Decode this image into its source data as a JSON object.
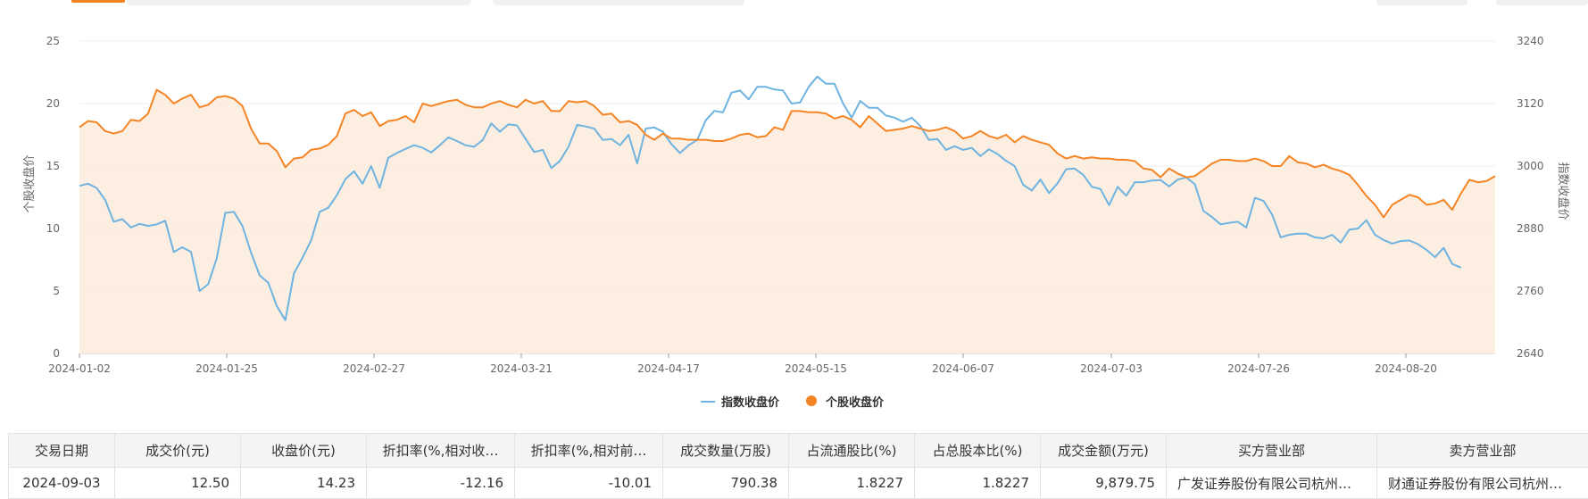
{
  "chart_data": {
    "type": "line",
    "left_axis": {
      "title": "个股收盘价",
      "ticks": [
        "0",
        "5",
        "10",
        "15",
        "20",
        "25"
      ],
      "ylim": [
        0,
        25
      ]
    },
    "right_axis": {
      "title": "指数收盘价",
      "ticks": [
        "2640",
        "2760",
        "2880",
        "3000",
        "3120",
        "3240"
      ],
      "ylim": [
        2640,
        3240
      ]
    },
    "x_tick_labels": [
      "2024-01-02",
      "2024-01-25",
      "2024-02-27",
      "2024-03-21",
      "2024-04-17",
      "2024-05-15",
      "2024-06-07",
      "2024-07-03",
      "2024-07-26",
      "2024-08-20"
    ],
    "legend_position": "bottom-center",
    "grid": true,
    "series": [
      {
        "name": "指数收盘价",
        "axis": "right",
        "color": "#6fb3e0",
        "values": [
          2962,
          2966,
          2958,
          2935,
          2893,
          2898,
          2882,
          2889,
          2885,
          2888,
          2895,
          2835,
          2844,
          2835,
          2760,
          2773,
          2823,
          2910,
          2912,
          2885,
          2834,
          2790,
          2776,
          2731,
          2704,
          2794,
          2824,
          2857,
          2912,
          2920,
          2944,
          2975,
          2990,
          2966,
          3000,
          2958,
          3016,
          3025,
          3033,
          3040,
          3035,
          3026,
          3040,
          3055,
          3048,
          3040,
          3037,
          3050,
          3082,
          3066,
          3080,
          3078,
          3052,
          3027,
          3031,
          2996,
          3010,
          3037,
          3079,
          3076,
          3072,
          3050,
          3052,
          3040,
          3060,
          3005,
          3072,
          3074,
          3066,
          3042,
          3025,
          3040,
          3050,
          3088,
          3106,
          3103,
          3141,
          3145,
          3128,
          3152,
          3152,
          3147,
          3145,
          3120,
          3122,
          3152,
          3172,
          3158,
          3158,
          3120,
          3093,
          3125,
          3112,
          3112,
          3097,
          3093,
          3085,
          3093,
          3077,
          3050,
          3052,
          3031,
          3038,
          3031,
          3035,
          3019,
          3032,
          3023,
          3010,
          3000,
          2964,
          2953,
          2974,
          2948,
          2967,
          2994,
          2995,
          2983,
          2960,
          2956,
          2925,
          2960,
          2943,
          2969,
          2969,
          2972,
          2973,
          2961,
          2974,
          2978,
          2965,
          2914,
          2902,
          2888,
          2891,
          2893,
          2882,
          2939,
          2933,
          2907,
          2863,
          2868,
          2870,
          2870,
          2863,
          2861,
          2868,
          2853,
          2878,
          2880,
          2896,
          2868,
          2858,
          2851,
          2856,
          2857,
          2850,
          2839,
          2825,
          2843,
          2812,
          2805
        ]
      },
      {
        "name": "个股收盘价",
        "axis": "left",
        "color": "#f48424",
        "values": [
          18.1,
          18.6,
          18.5,
          17.8,
          17.6,
          17.8,
          18.7,
          18.6,
          19.2,
          21.1,
          20.7,
          20.0,
          20.4,
          20.7,
          19.7,
          19.9,
          20.5,
          20.6,
          20.4,
          19.8,
          18.0,
          16.8,
          16.8,
          16.2,
          14.9,
          15.6,
          15.7,
          16.3,
          16.4,
          16.7,
          17.4,
          19.2,
          19.5,
          19.0,
          19.3,
          18.2,
          18.6,
          18.7,
          19.0,
          18.5,
          20.0,
          19.8,
          20.0,
          20.2,
          20.3,
          19.9,
          19.7,
          19.7,
          20.0,
          20.2,
          19.9,
          19.7,
          20.3,
          20.0,
          20.2,
          19.4,
          19.4,
          20.2,
          20.1,
          20.2,
          19.8,
          19.1,
          19.2,
          18.5,
          18.6,
          18.3,
          17.5,
          17.1,
          17.6,
          17.2,
          17.2,
          17.1,
          17.1,
          17.1,
          17.0,
          17.0,
          17.2,
          17.5,
          17.6,
          17.3,
          17.4,
          18.1,
          17.9,
          19.4,
          19.4,
          19.3,
          19.3,
          19.2,
          18.8,
          19.0,
          18.7,
          18.1,
          19.0,
          18.4,
          17.8,
          17.9,
          18.0,
          18.2,
          18.0,
          17.8,
          17.9,
          18.1,
          17.8,
          17.2,
          17.4,
          17.8,
          17.4,
          17.2,
          17.5,
          16.9,
          17.4,
          17.1,
          16.9,
          16.7,
          16.0,
          15.6,
          15.8,
          15.6,
          15.7,
          15.6,
          15.6,
          15.5,
          15.5,
          15.4,
          14.8,
          14.7,
          14.1,
          14.8,
          14.4,
          14.1,
          14.2,
          14.7,
          15.2,
          15.5,
          15.5,
          15.4,
          15.4,
          15.6,
          15.4,
          15.0,
          15.0,
          15.8,
          15.3,
          15.2,
          14.9,
          15.1,
          14.8,
          14.6,
          14.3,
          13.5,
          12.6,
          11.9,
          10.9,
          11.9,
          12.3,
          12.7,
          12.5,
          11.9,
          12.0,
          12.3,
          11.5,
          12.8,
          13.9,
          13.7,
          13.8,
          14.2
        ]
      }
    ]
  },
  "table": {
    "headers": [
      "交易日期",
      "成交价(元)",
      "收盘价(元)",
      "折扣率(%,相对收…",
      "折扣率(%,相对前…",
      "成交数量(万股)",
      "占流通股比(%)",
      "占总股本比(%)",
      "成交金额(万元)",
      "买方营业部",
      "卖方营业部"
    ],
    "rows": [
      [
        "2024-09-03",
        "12.50",
        "14.23",
        "-12.16",
        "-10.01",
        "790.38",
        "1.8227",
        "1.8227",
        "9,879.75",
        "广发证券股份有限公司杭州…",
        "财通证券股份有限公司杭州…"
      ]
    ]
  }
}
